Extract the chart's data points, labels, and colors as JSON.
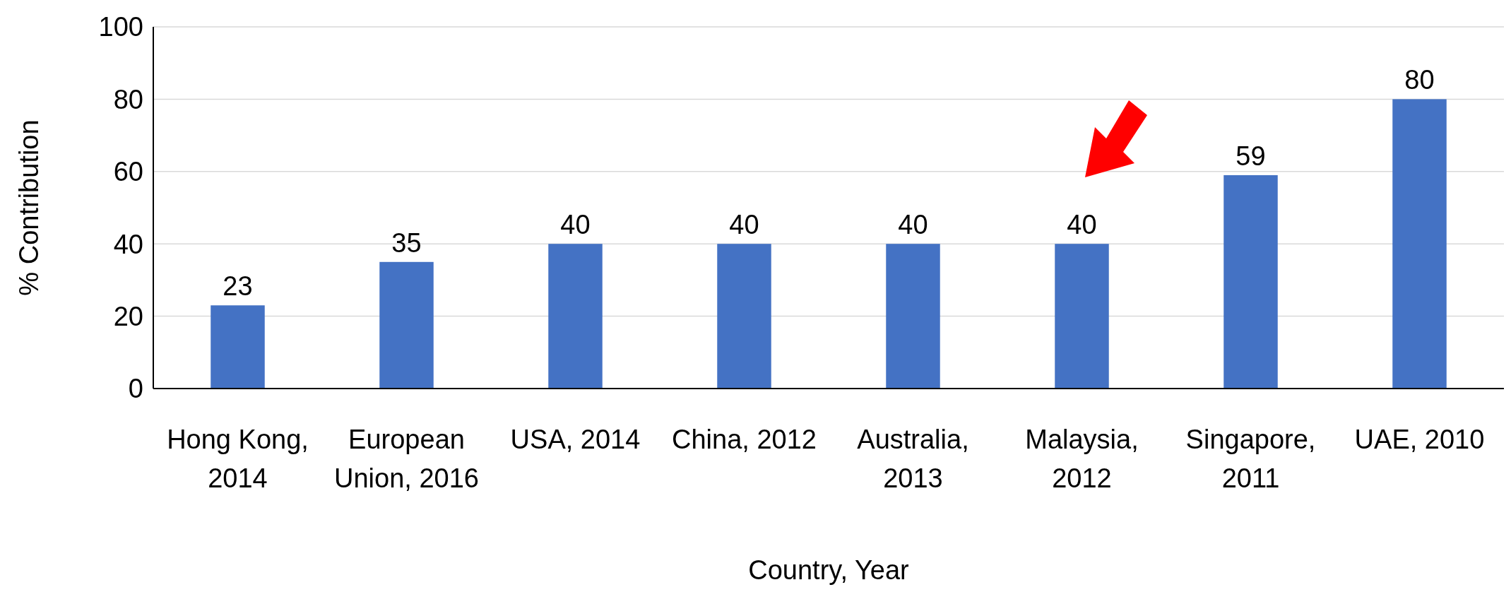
{
  "chart_data": {
    "type": "bar",
    "xlabel": "Country, Year",
    "ylabel": "% Contribution",
    "categories": [
      "Hong Kong, 2014",
      "European Union, 2016",
      "USA, 2014",
      "China, 2012",
      "Australia, 2013",
      "Malaysia, 2012",
      "Singapore, 2011",
      "UAE, 2010"
    ],
    "values": [
      23,
      35,
      40,
      40,
      40,
      40,
      59,
      80
    ],
    "color": "#4472c4",
    "ylim": [
      0,
      100
    ],
    "yticks": [
      0,
      20,
      40,
      60,
      80,
      100
    ],
    "grid": "y",
    "data_labels": true
  }
}
